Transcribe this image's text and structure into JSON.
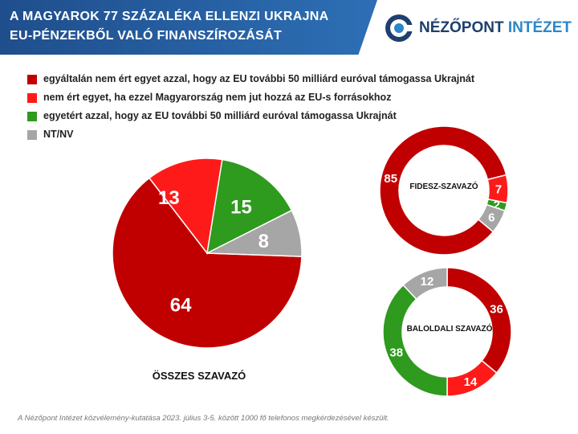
{
  "header": {
    "title_line1": "A MAGYAROK 77 SZÁZALÉKA ELLENZI UKRAJNA",
    "title_line2": "EU-PÉNZEKBŐL VALÓ FINANSZÍROZÁSÁT"
  },
  "logo": {
    "part1": "NÉZŐPONT",
    "part2": "INTÉZET"
  },
  "legend": [
    {
      "label": "egyáltalán  nem ért egyet azzal, hogy az EU további 50 milliárd euróval támogassa Ukrajnát",
      "color": "#c00000"
    },
    {
      "label": "nem ért egyet, ha ezzel Magyarország nem jut hozzá az EU-s forrásokhoz",
      "color": "#ff1a1a"
    },
    {
      "label": "egyetért azzal, hogy az EU további 50 milliárd euróval támogassa Ukrajnát",
      "color": "#2e9a1e"
    },
    {
      "label": "NT/NV",
      "color": "#a6a6a6"
    }
  ],
  "chart_data": [
    {
      "type": "pie",
      "title": "ÖSSZES  SZAVAZÓ",
      "categories": [
        "egyáltalán nem ért egyet",
        "nem ért egyet, ha",
        "egyetért",
        "NT/NV"
      ],
      "values": [
        64,
        13,
        15,
        8
      ],
      "colors": [
        "#c00000",
        "#ff1a1a",
        "#2e9a1e",
        "#a6a6a6"
      ]
    },
    {
      "type": "pie",
      "subtype": "donut",
      "title": "FIDESZ-SZAVAZÓ",
      "categories": [
        "egyáltalán nem ért egyet",
        "nem ért egyet, ha",
        "egyetért",
        "NT/NV"
      ],
      "values": [
        85,
        7,
        2,
        6
      ],
      "colors": [
        "#c00000",
        "#ff1a1a",
        "#2e9a1e",
        "#a6a6a6"
      ]
    },
    {
      "type": "pie",
      "subtype": "donut",
      "title": "BALOLDALI SZAVAZÓ",
      "categories": [
        "egyáltalán nem ért egyet",
        "nem ért egyet, ha",
        "egyetért",
        "NT/NV"
      ],
      "values": [
        36,
        14,
        38,
        12
      ],
      "colors": [
        "#c00000",
        "#ff1a1a",
        "#2e9a1e",
        "#a6a6a6"
      ]
    }
  ],
  "footnote": "A Nézőpont Intézet közvélemény-kutatása  2023. július 3-5. között 1000 fő telefonos megkérdezésével  készült."
}
